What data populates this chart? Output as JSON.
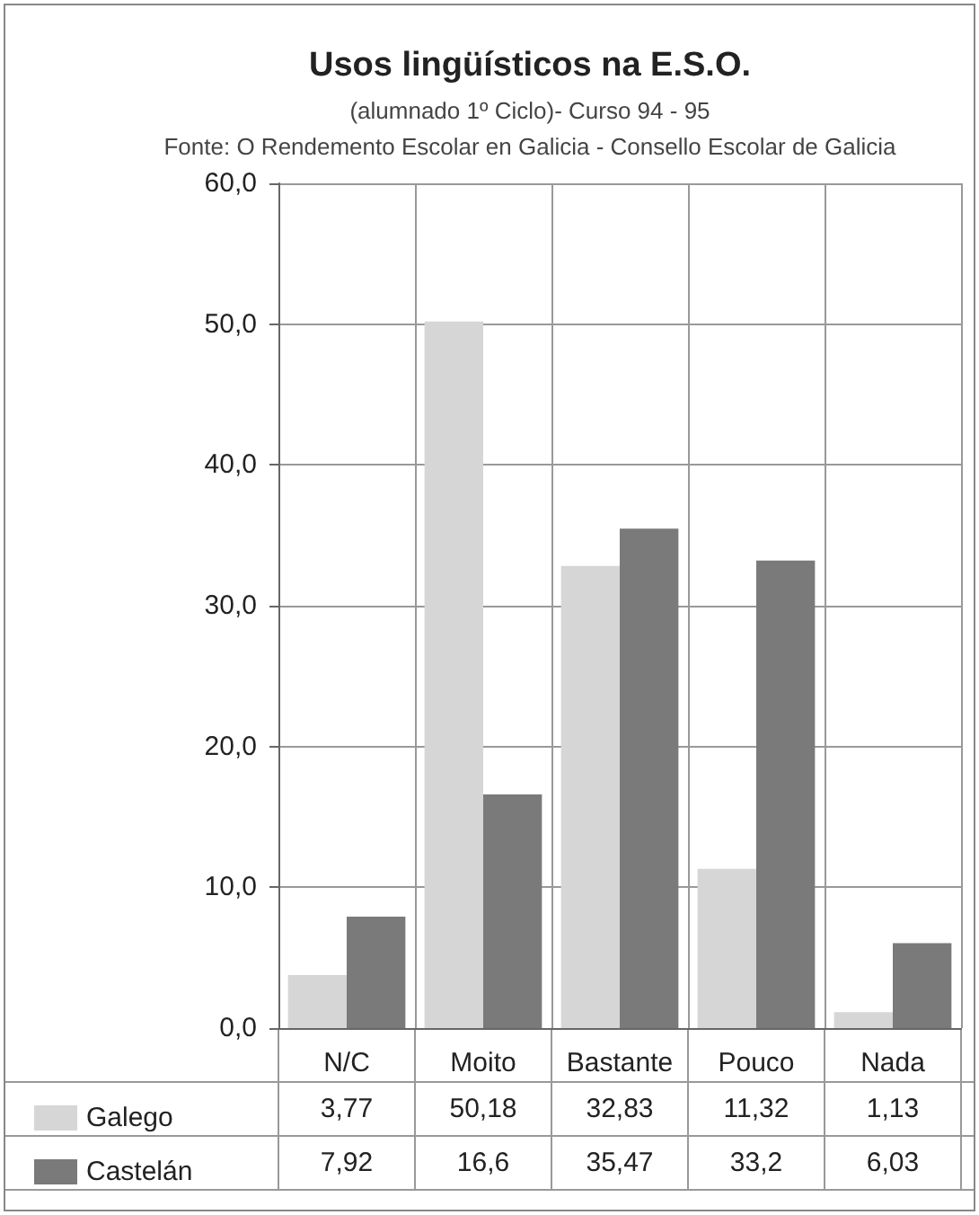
{
  "chart_data": {
    "type": "bar",
    "title": "Usos lingüísticos na E.S.O.",
    "subtitle": "(alumnado 1º Ciclo)- Curso 94 - 95",
    "annotations": [
      "Fonte: O Rendemento Escolar en Galicia - Consello Escolar de Galicia"
    ],
    "categories": [
      "N/C",
      "Moito",
      "Bastante",
      "Pouco",
      "Nada"
    ],
    "series": [
      {
        "name": "Galego",
        "color": "#d6d6d6",
        "values": [
          3.77,
          50.18,
          32.83,
          11.32,
          1.13
        ],
        "value_labels": [
          "3,77",
          "50,18",
          "32,83",
          "11,32",
          "1,13"
        ]
      },
      {
        "name": "Castelán",
        "color": "#7a7a7a",
        "values": [
          7.92,
          16.6,
          35.47,
          33.2,
          6.03
        ],
        "value_labels": [
          "7,92",
          "16,6",
          "35,47",
          "33,2",
          "6,03"
        ]
      }
    ],
    "ylim": [
      0,
      60
    ],
    "yticks": [
      {
        "value": 0,
        "label": "0,0"
      },
      {
        "value": 10,
        "label": "10,0"
      },
      {
        "value": 20,
        "label": "20,0"
      },
      {
        "value": 30,
        "label": "30,0"
      },
      {
        "value": 40,
        "label": "40,0"
      },
      {
        "value": 50,
        "label": "50,0"
      },
      {
        "value": 60,
        "label": "60,0"
      }
    ],
    "grid": true,
    "legend": "bottom"
  }
}
